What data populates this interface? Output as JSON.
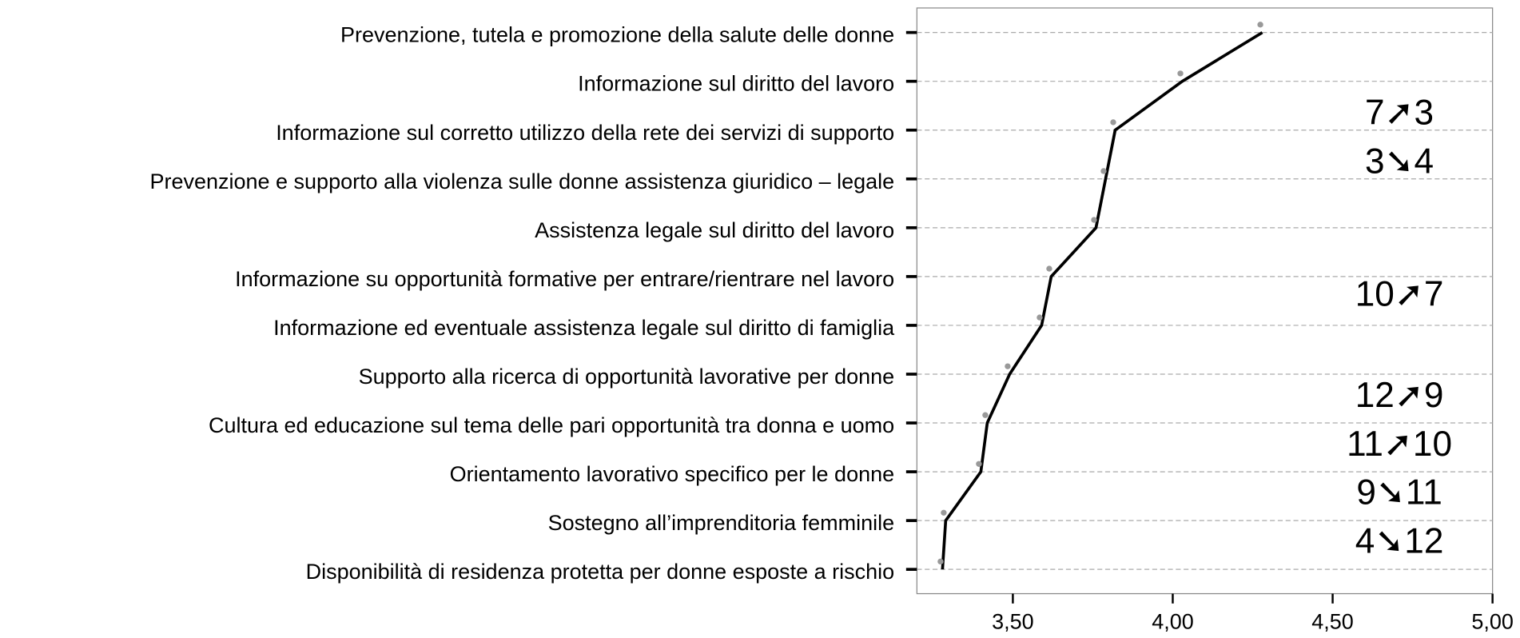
{
  "chart_data": {
    "type": "line",
    "categories": [
      "Prevenzione, tutela e promozione della salute delle donne",
      "Informazione sul diritto del lavoro",
      "Informazione sul corretto utilizzo della rete dei servizi di supporto",
      "Prevenzione e supporto alla violenza sulle donne assistenza giuridico – legale",
      "Assistenza legale sul diritto del lavoro",
      "Informazione su opportunità formative per entrare/rientrare nel lavoro",
      "Informazione ed eventuale assistenza legale sul diritto di famiglia",
      "Supporto alla ricerca di opportunità lavorative per donne",
      "Cultura ed educazione sul tema delle pari opportunità tra donna e uomo",
      "Orientamento lavorativo specifico per le donne",
      "Sostegno all’imprenditoria femminile",
      "Disponibilità di residenza protetta per donne esposte a rischio"
    ],
    "values": [
      4.28,
      4.03,
      3.82,
      3.79,
      3.76,
      3.62,
      3.59,
      3.49,
      3.42,
      3.4,
      3.29,
      3.28
    ],
    "color": "#000000",
    "xlim": [
      3.2,
      5.0
    ],
    "xticks": [
      {
        "value": 3.5,
        "label": "3,50"
      },
      {
        "value": 4.0,
        "label": "4,00"
      },
      {
        "value": 4.5,
        "label": "4,50"
      },
      {
        "value": 5.0,
        "label": "5,00"
      }
    ],
    "grid": true,
    "annotations": [
      "7➚3",
      "3➘4",
      "10➚7",
      "12➚9",
      "11➚10",
      "9➘11",
      "4➘12"
    ]
  }
}
